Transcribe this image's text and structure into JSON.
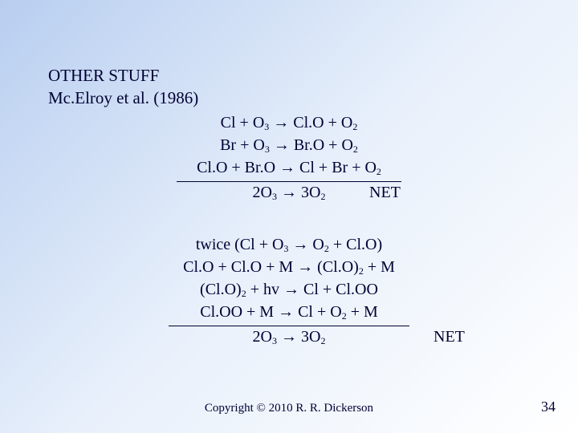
{
  "heading": {
    "line1": "OTHER STUFF",
    "line2": "Mc.Elroy et al. (1986)"
  },
  "block1": {
    "eq1": "Cl + O ₃ → Cl.O + O ₂",
    "eq2": "Br + O ₃ → Br.O + O ₂",
    "eq3": "Cl.O + Br.O → Cl + Br + O ₂",
    "net_eq": "2O ₃ → 3O ₂",
    "net_label": "NET"
  },
  "block2": {
    "eq1": "twice (Cl + O ₃ → O ₂ + Cl.O)",
    "eq2": "Cl.O + Cl.O + M → (Cl.O) ₂ + M",
    "eq3": "(Cl.O) ₂ + hv → Cl + Cl.OO",
    "eq4": "Cl.OO + M → Cl + O ₂ + M",
    "net_eq": "2O ₃ → 3O ₂",
    "net_label": "NET"
  },
  "footer": "Copyright © 2010 R. R. Dickerson",
  "page_number": "34",
  "colors": {
    "text": "#000033",
    "bg_start": "#b8cef0",
    "bg_end": "#ffffff"
  },
  "fontsize": {
    "heading": 21,
    "equation": 20,
    "footer": 15,
    "pagenum": 18
  }
}
